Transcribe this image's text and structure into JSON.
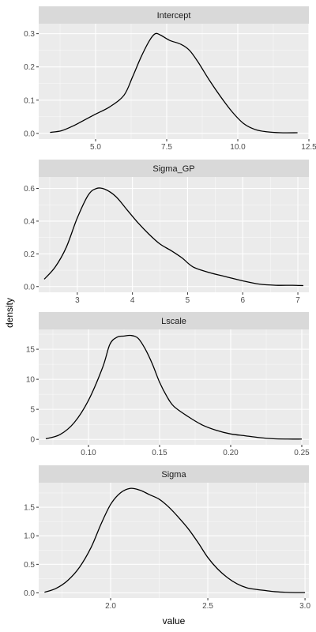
{
  "chart_data": {
    "type": "line",
    "kind": "faceted density plot",
    "xlabel": "value",
    "ylabel": "density",
    "grid": true,
    "facet_layout": "single column",
    "colors": {
      "panel_background": "#ebebeb",
      "strip_background": "#d9d9d9",
      "grid_major": "#ffffff",
      "line": "#000000"
    },
    "panels": [
      {
        "title": "Intercept",
        "xlim": [
          3.0,
          12.5
        ],
        "ylim": [
          -0.017,
          0.33
        ],
        "x_ticks": [
          5.0,
          7.5,
          10.0,
          12.5
        ],
        "x_tick_labels": [
          "5.0",
          "7.5",
          "10.0",
          "12.5"
        ],
        "y_ticks": [
          0.0,
          0.1,
          0.2,
          0.3
        ],
        "y_tick_labels": [
          "0.0",
          "0.1",
          "0.2",
          "0.3"
        ],
        "series": [
          {
            "x": [
              3.4,
              3.8,
              4.2,
              4.6,
              5.0,
              5.5,
              6.0,
              6.3,
              6.6,
              6.9,
              7.1,
              7.3,
              7.6,
              8.0,
              8.3,
              8.6,
              9.0,
              9.4,
              9.8,
              10.2,
              10.6,
              11.0,
              11.5,
              12.1
            ],
            "y": [
              0.003,
              0.008,
              0.022,
              0.04,
              0.058,
              0.08,
              0.115,
              0.17,
              0.23,
              0.28,
              0.3,
              0.295,
              0.28,
              0.268,
              0.25,
              0.215,
              0.16,
              0.11,
              0.065,
              0.03,
              0.012,
              0.005,
              0.002,
              0.002
            ]
          }
        ]
      },
      {
        "title": "Sigma_GP",
        "xlim": [
          2.3,
          7.2
        ],
        "ylim": [
          -0.035,
          0.67
        ],
        "x_ticks": [
          3,
          4,
          5,
          6,
          7
        ],
        "x_tick_labels": [
          "3",
          "4",
          "5",
          "6",
          "7"
        ],
        "y_ticks": [
          0.0,
          0.2,
          0.4,
          0.6
        ],
        "y_tick_labels": [
          "0.0",
          "0.2",
          "0.4",
          "0.6"
        ],
        "series": [
          {
            "x": [
              2.4,
              2.6,
              2.8,
              3.0,
              3.2,
              3.35,
              3.5,
              3.7,
              3.9,
              4.1,
              4.3,
              4.5,
              4.7,
              4.9,
              5.1,
              5.4,
              5.7,
              6.0,
              6.3,
              6.6,
              6.9,
              7.1
            ],
            "y": [
              0.045,
              0.12,
              0.24,
              0.42,
              0.56,
              0.6,
              0.595,
              0.55,
              0.47,
              0.39,
              0.32,
              0.26,
              0.22,
              0.175,
              0.12,
              0.085,
              0.06,
              0.035,
              0.015,
              0.008,
              0.008,
              0.006
            ]
          }
        ]
      },
      {
        "title": "Lscale",
        "xlim": [
          0.065,
          0.255
        ],
        "ylim": [
          -0.9,
          18.3
        ],
        "x_ticks": [
          0.1,
          0.15,
          0.2,
          0.25
        ],
        "x_tick_labels": [
          "0.10",
          "0.15",
          "0.20",
          "0.25"
        ],
        "y_ticks": [
          0,
          5,
          10,
          15
        ],
        "y_tick_labels": [
          "0",
          "5",
          "10",
          "15"
        ],
        "series": [
          {
            "x": [
              0.07,
              0.08,
              0.09,
              0.1,
              0.11,
              0.115,
              0.12,
              0.125,
              0.13,
              0.135,
              0.14,
              0.145,
              0.15,
              0.155,
              0.16,
              0.17,
              0.18,
              0.19,
              0.2,
              0.21,
              0.22,
              0.23,
              0.24,
              0.25
            ],
            "y": [
              0.1,
              0.8,
              2.8,
              6.5,
              12.0,
              15.8,
              17.0,
              17.2,
              17.3,
              16.8,
              15.0,
              12.5,
              9.5,
              7.2,
              5.5,
              3.8,
              2.4,
              1.5,
              0.9,
              0.6,
              0.3,
              0.1,
              0.05,
              0.05
            ]
          }
        ]
      },
      {
        "title": "Sigma",
        "xlim": [
          1.63,
          3.02
        ],
        "ylim": [
          -0.09,
          1.93
        ],
        "x_ticks": [
          2.0,
          2.5,
          3.0
        ],
        "x_tick_labels": [
          "2.0",
          "2.5",
          "3.0"
        ],
        "y_ticks": [
          0.0,
          0.5,
          1.0,
          1.5
        ],
        "y_tick_labels": [
          "0.0",
          "0.5",
          "1.0",
          "1.5"
        ],
        "series": [
          {
            "x": [
              1.66,
              1.72,
              1.78,
              1.84,
              1.9,
              1.95,
              2.0,
              2.05,
              2.1,
              2.15,
              2.2,
              2.25,
              2.3,
              2.35,
              2.4,
              2.45,
              2.5,
              2.55,
              2.6,
              2.65,
              2.7,
              2.75,
              2.8,
              2.85,
              2.9,
              2.95,
              3.0
            ],
            "y": [
              0.01,
              0.08,
              0.22,
              0.45,
              0.8,
              1.2,
              1.55,
              1.75,
              1.83,
              1.8,
              1.72,
              1.64,
              1.5,
              1.32,
              1.12,
              0.88,
              0.62,
              0.42,
              0.27,
              0.16,
              0.09,
              0.06,
              0.04,
              0.02,
              0.01,
              0.005,
              0.005
            ]
          }
        ]
      }
    ]
  }
}
